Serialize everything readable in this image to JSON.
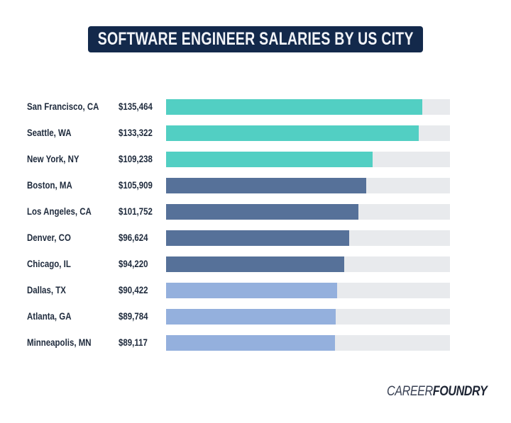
{
  "chart_data": {
    "type": "bar",
    "orientation": "horizontal",
    "title": "SOFTWARE ENGINEER SALARIES BY US CITY",
    "categories": [
      "San Francisco, CA",
      "Seattle, WA",
      "New York, NY",
      "Boston, MA",
      "Los Angeles, CA",
      "Denver, CO",
      "Chicago, IL",
      "Dallas, TX",
      "Atlanta, GA",
      "Minneapolis, MN"
    ],
    "values": [
      135464,
      133322,
      109238,
      105909,
      101752,
      96624,
      94220,
      90422,
      89784,
      89117
    ],
    "value_labels": [
      "$135,464",
      "$133,322",
      "$109,238",
      "$105,909",
      "$101,752",
      "$96,624",
      "$94,220",
      "$90,422",
      "$89,784",
      "$89,117"
    ],
    "bar_colors": [
      "#52cfc3",
      "#52cfc3",
      "#52cfc3",
      "#567199",
      "#567199",
      "#567199",
      "#567199",
      "#94b0dd",
      "#94b0dd",
      "#94b0dd"
    ],
    "track_color": "#e8eaed",
    "xlim": [
      0,
      150000
    ],
    "grid": false,
    "legend": "none"
  },
  "branding": {
    "logo_light": "CAREER",
    "logo_bold": "FOUNDRY"
  },
  "colors": {
    "title_bg": "#13294b"
  }
}
